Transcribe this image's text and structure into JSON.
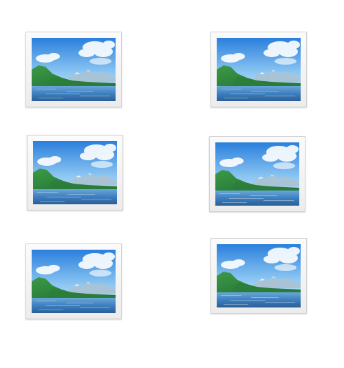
{
  "thumbnails": [
    {
      "icon": "landscape-picture-icon"
    },
    {
      "icon": "landscape-picture-icon"
    },
    {
      "icon": "landscape-picture-icon"
    },
    {
      "icon": "landscape-picture-icon"
    },
    {
      "icon": "landscape-picture-icon"
    },
    {
      "icon": "landscape-picture-icon"
    }
  ],
  "colors": {
    "sky_top": "#2f86e0",
    "sky_bottom": "#cfeaff",
    "mountain": "#2f8a3c",
    "water": "#3a78b8",
    "frame": "#f2f2f2"
  }
}
